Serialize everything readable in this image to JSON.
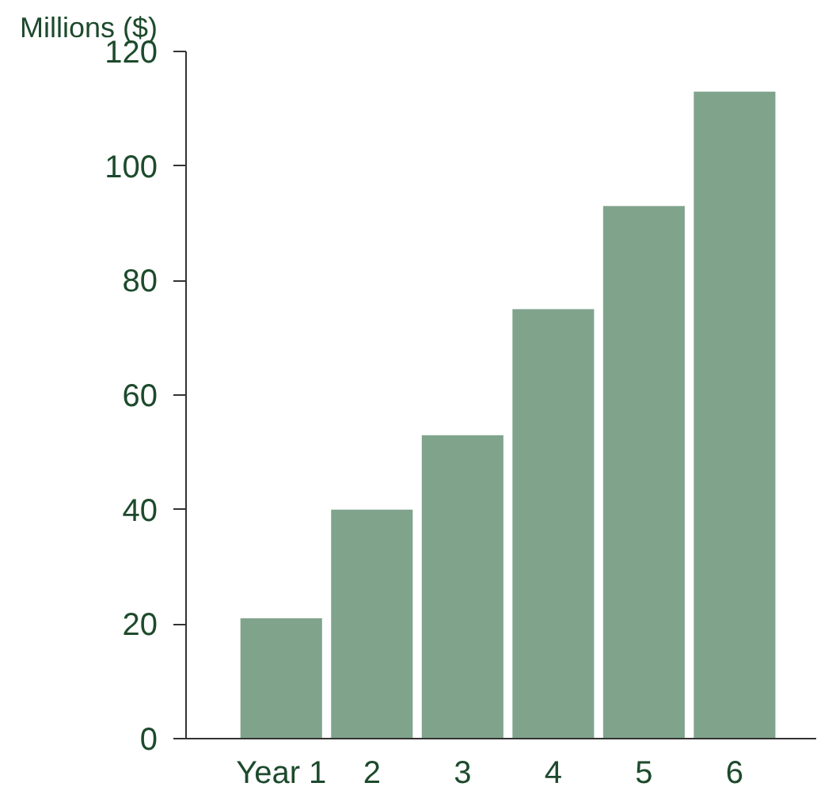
{
  "chart_data": {
    "type": "bar",
    "ylabel": "Millions ($)",
    "categories": [
      "Year 1",
      "2",
      "3",
      "4",
      "5",
      "6"
    ],
    "values": [
      21,
      40,
      53,
      75,
      93,
      113
    ],
    "color": "#80a38c",
    "ylim": [
      0,
      120
    ],
    "yticks": [
      0,
      20,
      40,
      60,
      80,
      100,
      120
    ],
    "grid": false
  }
}
